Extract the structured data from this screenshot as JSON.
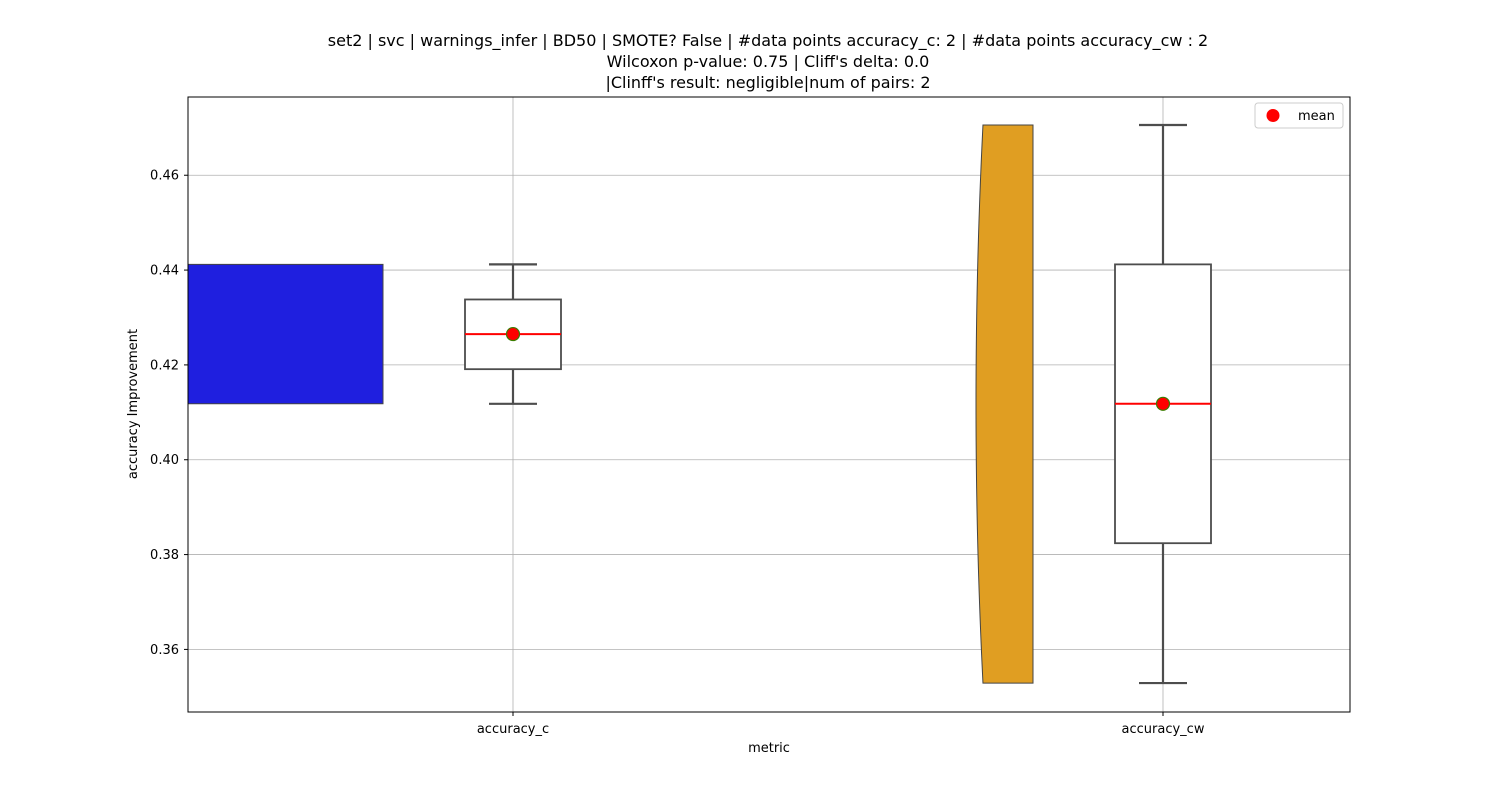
{
  "chart_data": {
    "type": "box",
    "title_lines": [
      "set2 | svc | warnings_infer | BD50 | SMOTE? False | #data points accuracy_c: 2 | #data points accuracy_cw : 2",
      "Wilcoxon p-value: 0.75 | Cliff's delta: 0.0",
      "|Clinff's result: negligible|num of pairs: 2"
    ],
    "xlabel": "metric",
    "ylabel": "accuracy Improvement",
    "ylim": [
      0.3468,
      0.4765
    ],
    "yticks": [
      0.36,
      0.38,
      0.4,
      0.42,
      0.44,
      0.46
    ],
    "ytick_labels": [
      "0.36",
      "0.38",
      "0.40",
      "0.42",
      "0.44",
      "0.46"
    ],
    "grid": true,
    "legend": {
      "position": "top-right",
      "entries": [
        "mean"
      ]
    },
    "categories": [
      "accuracy_c",
      "accuracy_cw"
    ],
    "series": [
      {
        "category": "accuracy_c",
        "violin_color": "#1f1fdf",
        "values": [
          0.4118,
          0.4412
        ],
        "box": {
          "whisker_low": 0.4118,
          "q1": 0.4191,
          "median": 0.4265,
          "q3": 0.4338,
          "whisker_high": 0.4412
        },
        "mean": 0.4265
      },
      {
        "category": "accuracy_cw",
        "violin_color": "#e09e22",
        "values": [
          0.3529,
          0.4706
        ],
        "box": {
          "whisker_low": 0.3529,
          "q1": 0.3824,
          "median": 0.4118,
          "q3": 0.4412,
          "whisker_high": 0.4706
        },
        "mean": 0.4118
      }
    ],
    "colors": {
      "median": "#ff0000",
      "mean_marker": "#ff0000",
      "mean_edge": "#3a7d00",
      "box_edge": "#4d4d4d",
      "grid": "#b0b0b0"
    }
  }
}
